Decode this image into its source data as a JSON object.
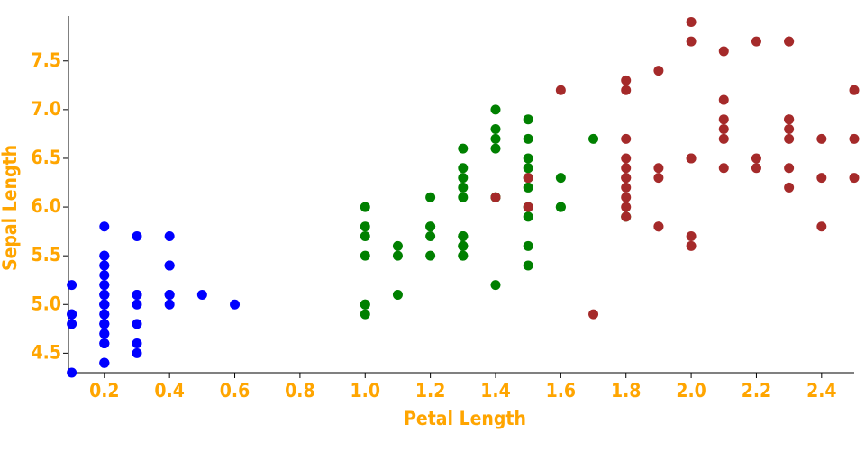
{
  "chart_data": {
    "type": "scatter",
    "x_label": "Petal Length",
    "y_label": "Sepal Length",
    "xlim": [
      0.09,
      2.5
    ],
    "ylim": [
      4.3,
      7.96
    ],
    "xticks": [
      0.2,
      0.4,
      0.6,
      0.8,
      {
        "value": 1.0,
        "label": "1.0"
      },
      1.2,
      1.4,
      1.6,
      1.8,
      {
        "value": 2.0,
        "label": "2.0"
      },
      2.2,
      2.4
    ],
    "yticks": [
      4.5,
      {
        "value": 5.0,
        "label": "5.0"
      },
      5.5,
      {
        "value": 6.0,
        "label": "6.0"
      },
      6.5,
      {
        "value": 7.0,
        "label": "7.0"
      },
      7.5
    ],
    "series": [
      {
        "color": "#0000ff",
        "x": [
          0.2,
          0.2,
          0.2,
          0.2,
          0.2,
          0.4,
          0.3,
          0.2,
          0.2,
          0.1,
          0.2,
          0.2,
          0.1,
          0.1,
          0.2,
          0.4,
          0.4,
          0.3,
          0.3,
          0.3,
          0.2,
          0.4,
          0.2,
          0.5,
          0.2,
          0.2,
          0.4,
          0.2,
          0.2,
          0.2,
          0.2,
          0.4,
          0.1,
          0.2,
          0.2,
          0.2,
          0.2,
          0.1,
          0.2,
          0.2,
          0.3,
          0.3,
          0.2,
          0.6,
          0.4,
          0.3,
          0.2,
          0.2,
          0.2,
          0.2
        ],
        "values": [
          5.1,
          4.9,
          4.7,
          4.6,
          5.0,
          5.4,
          4.6,
          5.0,
          4.4,
          4.9,
          5.4,
          4.8,
          4.8,
          4.3,
          5.8,
          5.7,
          5.4,
          5.1,
          5.7,
          5.1,
          5.4,
          5.1,
          4.6,
          5.1,
          4.8,
          5.0,
          5.0,
          5.2,
          5.2,
          4.7,
          4.8,
          5.4,
          5.2,
          5.5,
          4.9,
          5.0,
          5.5,
          4.9,
          4.4,
          5.1,
          5.0,
          4.5,
          4.4,
          5.0,
          5.1,
          4.8,
          5.1,
          4.6,
          5.3,
          5.0
        ]
      },
      {
        "color": "#008000",
        "x": [
          1.4,
          1.5,
          1.5,
          1.3,
          1.5,
          1.3,
          1.6,
          1.0,
          1.3,
          1.4,
          1.0,
          1.5,
          1.0,
          1.4,
          1.3,
          1.4,
          1.5,
          1.0,
          1.5,
          1.1,
          1.8,
          1.3,
          1.5,
          1.2,
          1.3,
          1.4,
          1.4,
          1.7,
          1.5,
          1.0,
          1.1,
          1.0,
          1.2,
          1.6,
          1.5,
          1.6,
          1.5,
          1.3,
          1.3,
          1.3,
          1.2,
          1.4,
          1.2,
          1.0,
          1.3,
          1.2,
          1.3,
          1.3,
          1.1,
          1.3
        ],
        "values": [
          7.0,
          6.4,
          6.9,
          5.5,
          6.5,
          5.7,
          6.3,
          4.9,
          6.6,
          5.2,
          5.0,
          5.9,
          6.0,
          6.1,
          5.6,
          6.7,
          5.6,
          5.8,
          6.2,
          5.6,
          5.9,
          6.1,
          6.3,
          6.1,
          6.4,
          6.6,
          6.8,
          6.7,
          6.0,
          5.7,
          5.5,
          5.5,
          5.8,
          6.0,
          5.4,
          6.0,
          6.7,
          6.3,
          5.6,
          5.5,
          5.5,
          6.1,
          5.8,
          5.0,
          5.6,
          5.7,
          5.7,
          6.2,
          5.1,
          5.7
        ]
      },
      {
        "color": "#a52a2a",
        "x": [
          2.5,
          1.9,
          2.1,
          1.8,
          2.2,
          2.1,
          1.7,
          1.8,
          1.8,
          2.5,
          2.0,
          1.9,
          2.1,
          2.0,
          2.4,
          2.3,
          1.8,
          2.2,
          2.3,
          1.5,
          2.3,
          2.0,
          2.0,
          1.8,
          2.1,
          1.8,
          1.8,
          1.8,
          2.1,
          1.6,
          1.9,
          2.0,
          2.2,
          1.5,
          1.4,
          2.3,
          2.4,
          1.8,
          1.8,
          2.1,
          2.4,
          2.3,
          1.9,
          2.3,
          2.5,
          2.3,
          1.9,
          2.0,
          2.3,
          1.8
        ],
        "values": [
          6.3,
          5.8,
          7.1,
          6.3,
          6.5,
          7.6,
          4.9,
          7.3,
          6.7,
          7.2,
          6.5,
          6.4,
          6.8,
          5.7,
          5.8,
          6.4,
          6.5,
          7.7,
          7.7,
          6.0,
          6.9,
          5.6,
          7.7,
          6.3,
          6.7,
          7.2,
          6.2,
          6.1,
          6.4,
          7.2,
          7.4,
          7.9,
          6.4,
          6.3,
          6.1,
          7.7,
          6.3,
          6.4,
          6.0,
          6.9,
          6.7,
          6.9,
          5.8,
          6.8,
          6.7,
          6.7,
          6.3,
          6.5,
          6.2,
          5.9
        ]
      }
    ]
  }
}
